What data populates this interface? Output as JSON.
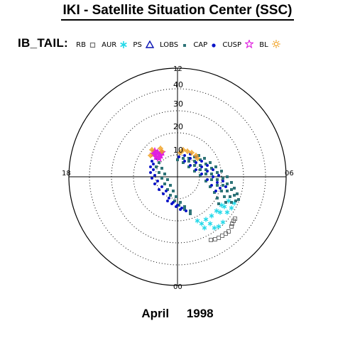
{
  "header": {
    "title": "IKI - Satellite Situation Center (SSC)"
  },
  "legend": {
    "category": "IB_TAIL:",
    "items": [
      {
        "label": "RB",
        "marker": "square-icon",
        "color": "#707070"
      },
      {
        "label": "AUR",
        "marker": "asterisk-icon",
        "color": "#20d8e8"
      },
      {
        "label": "PS",
        "marker": "triangle-icon",
        "color": "#0a14b4"
      },
      {
        "label": "LOBS",
        "marker": "square-icon",
        "color": "#2e7478"
      },
      {
        "label": "CAP",
        "marker": "dot-icon",
        "color": "#0a14c8"
      },
      {
        "label": "CUSP",
        "marker": "star-icon",
        "color": "#e020e0"
      },
      {
        "label": "BL",
        "marker": "sun-icon",
        "color": "#f0a020"
      }
    ]
  },
  "chart_data": {
    "type": "scatter",
    "projection": "polar (magnetic local time vs. latitude distance)",
    "grid": true,
    "radial_axis": {
      "tick_labels": [
        "10",
        "20",
        "30",
        "40"
      ]
    },
    "angular_axis": {
      "tick_labels": [
        "12",
        "06",
        "00",
        "18"
      ]
    },
    "series": [
      {
        "name": "RB",
        "color": "#707070",
        "points": [
          [
            72,
            -77
          ],
          [
            68,
            -80
          ],
          [
            63,
            -83
          ],
          [
            58,
            -86
          ],
          [
            53,
            -88
          ],
          [
            47,
            -89
          ],
          [
            77,
            -66
          ],
          [
            76,
            -70
          ],
          [
            81,
            -59
          ],
          [
            79,
            -62
          ]
        ]
      },
      {
        "name": "AUR",
        "color": "#20d8e8",
        "points": [
          [
            70,
            -50
          ],
          [
            76,
            -44
          ],
          [
            80,
            -37
          ],
          [
            60,
            -50
          ],
          [
            66,
            -42
          ],
          [
            72,
            -34
          ],
          [
            48,
            -55
          ],
          [
            55,
            -48
          ],
          [
            62,
            -40
          ],
          [
            40,
            -60
          ],
          [
            46,
            -66
          ],
          [
            34,
            -66
          ],
          [
            28,
            -62
          ],
          [
            52,
            -72
          ],
          [
            58,
            -70
          ],
          [
            64,
            -64
          ],
          [
            38,
            -72
          ]
        ]
      },
      {
        "name": "LOBS",
        "color": "#2e7478",
        "points": [
          [
            0,
            24
          ],
          [
            8,
            20
          ],
          [
            16,
            14
          ],
          [
            24,
            8
          ],
          [
            32,
            2
          ],
          [
            40,
            -6
          ],
          [
            46,
            -14
          ],
          [
            52,
            -22
          ],
          [
            56,
            -30
          ],
          [
            58,
            -38
          ],
          [
            8,
            26
          ],
          [
            16,
            22
          ],
          [
            24,
            16
          ],
          [
            32,
            10
          ],
          [
            40,
            4
          ],
          [
            48,
            -4
          ],
          [
            56,
            -12
          ],
          [
            62,
            -20
          ],
          [
            66,
            -28
          ],
          [
            68,
            -36
          ],
          [
            16,
            26
          ],
          [
            24,
            22
          ],
          [
            32,
            16
          ],
          [
            40,
            10
          ],
          [
            48,
            4
          ],
          [
            56,
            -4
          ],
          [
            64,
            -12
          ],
          [
            70,
            -20
          ],
          [
            74,
            -28
          ],
          [
            76,
            -36
          ],
          [
            24,
            28
          ],
          [
            32,
            24
          ],
          [
            40,
            18
          ],
          [
            48,
            12
          ],
          [
            56,
            6
          ],
          [
            64,
            -2
          ],
          [
            70,
            -10
          ],
          [
            76,
            -18
          ],
          [
            80,
            -26
          ],
          [
            82,
            -34
          ],
          [
            30,
            30
          ],
          [
            38,
            26
          ],
          [
            46,
            20
          ],
          [
            54,
            14
          ],
          [
            62,
            8
          ],
          [
            70,
            0
          ],
          [
            76,
            -8
          ],
          [
            80,
            -16
          ],
          [
            84,
            -24
          ],
          [
            86,
            -32
          ],
          [
            -26,
            20
          ],
          [
            -22,
            12
          ],
          [
            -18,
            4
          ],
          [
            -14,
            -4
          ],
          [
            -10,
            -12
          ],
          [
            -6,
            -20
          ],
          [
            -2,
            -28
          ],
          [
            4,
            -36
          ],
          [
            10,
            -42
          ],
          [
            18,
            -48
          ],
          [
            -30,
            14
          ],
          [
            -26,
            6
          ],
          [
            -22,
            -2
          ],
          [
            -18,
            -10
          ],
          [
            -14,
            -18
          ],
          [
            -10,
            -26
          ],
          [
            -4,
            -34
          ],
          [
            2,
            -40
          ],
          [
            10,
            -46
          ],
          [
            18,
            -52
          ]
        ]
      },
      {
        "name": "CAP",
        "color": "#0a14c8",
        "points": [
          [
            -32,
            30
          ],
          [
            -36,
            22
          ],
          [
            -38,
            14
          ],
          [
            -38,
            6
          ],
          [
            -36,
            -2
          ],
          [
            -32,
            -10
          ],
          [
            -26,
            -18
          ],
          [
            -20,
            -24
          ],
          [
            -12,
            -30
          ],
          [
            -24,
            34
          ],
          [
            -30,
            26
          ],
          [
            -34,
            18
          ],
          [
            -34,
            10
          ],
          [
            -32,
            2
          ],
          [
            -28,
            -6
          ],
          [
            -22,
            -14
          ],
          [
            -16,
            -20
          ],
          [
            2,
            28
          ],
          [
            10,
            22
          ],
          [
            18,
            16
          ],
          [
            26,
            10
          ],
          [
            34,
            4
          ],
          [
            42,
            -4
          ],
          [
            48,
            -12
          ],
          [
            54,
            -20
          ],
          [
            10,
            30
          ],
          [
            18,
            26
          ],
          [
            26,
            20
          ],
          [
            34,
            14
          ],
          [
            42,
            8
          ],
          [
            50,
            0
          ],
          [
            56,
            -8
          ],
          [
            60,
            -16
          ],
          [
            18,
            32
          ],
          [
            26,
            28
          ],
          [
            34,
            22
          ],
          [
            42,
            16
          ],
          [
            50,
            10
          ],
          [
            58,
            2
          ],
          [
            64,
            -6
          ],
          [
            68,
            -14
          ],
          [
            -6,
            -36
          ],
          [
            0,
            -40
          ],
          [
            6,
            -44
          ],
          [
            12,
            -48
          ],
          [
            -14,
            -34
          ],
          [
            -8,
            -38
          ],
          [
            -2,
            -42
          ],
          [
            4,
            -46
          ]
        ]
      },
      {
        "name": "CUSP",
        "color": "#e020e0",
        "points": [
          [
            -34,
            32
          ],
          [
            -28,
            34
          ],
          [
            -24,
            30
          ],
          [
            -30,
            28
          ],
          [
            -26,
            26
          ],
          [
            -32,
            36
          ],
          [
            -22,
            34
          ]
        ]
      },
      {
        "name": "BL",
        "color": "#f0a020",
        "points": [
          [
            -36,
            38
          ],
          [
            -24,
            40
          ],
          [
            -22,
            36
          ],
          [
            8,
            38
          ],
          [
            14,
            36
          ],
          [
            20,
            34
          ],
          [
            26,
            30
          ],
          [
            4,
            34
          ],
          [
            28,
            26
          ],
          [
            -38,
            30
          ]
        ]
      }
    ]
  },
  "footer": {
    "month": "April",
    "year": "1998"
  }
}
